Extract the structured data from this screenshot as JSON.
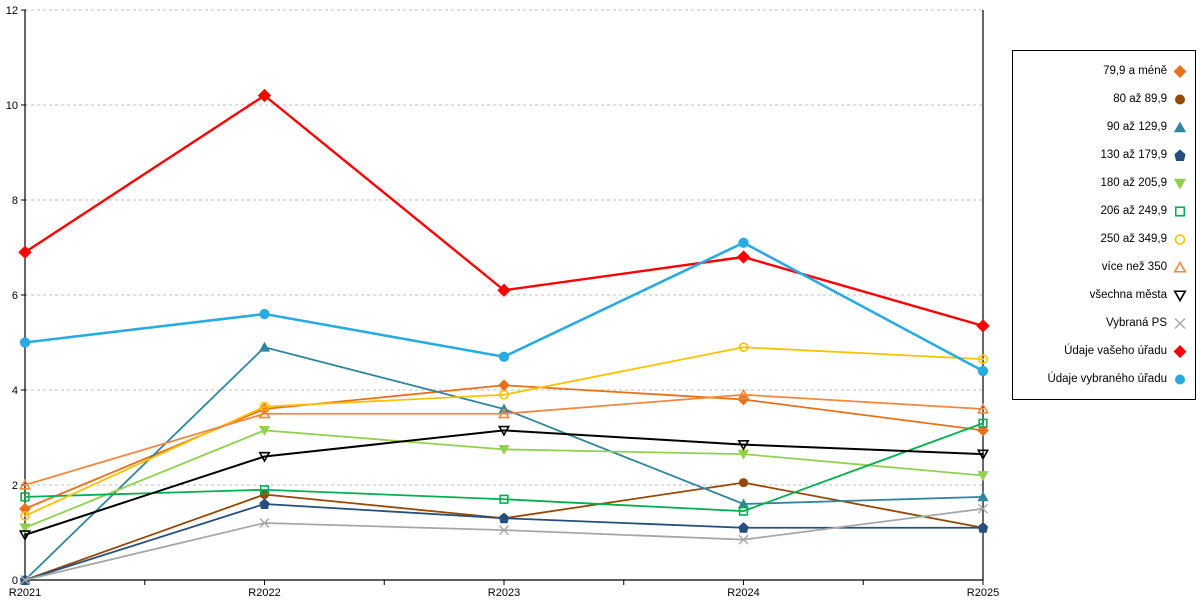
{
  "chart_data": {
    "type": "line",
    "title": "",
    "xlabel": "",
    "ylabel": "",
    "categories": [
      "R2021",
      "R2022",
      "R2023",
      "R2024",
      "R2025"
    ],
    "ylim": [
      0,
      12
    ],
    "yticks": [
      0,
      2,
      4,
      6,
      8,
      10,
      12
    ],
    "grid": "horizontal-dashed",
    "legend_position": "right-box",
    "series": [
      {
        "name": "79,9 a méně",
        "marker": "diamond",
        "filled": true,
        "color": "#E8701A",
        "width": 1.8,
        "values": [
          1.5,
          3.6,
          4.1,
          3.8,
          3.15
        ]
      },
      {
        "name": "80 až 89,9",
        "marker": "circle",
        "filled": true,
        "color": "#964809",
        "width": 1.8,
        "values": [
          0,
          1.8,
          1.3,
          2.05,
          1.1
        ]
      },
      {
        "name": "90 až 129,9",
        "marker": "triangle-up",
        "filled": true,
        "color": "#31859C",
        "width": 1.8,
        "values": [
          0,
          4.9,
          3.6,
          1.6,
          1.75
        ]
      },
      {
        "name": "130 až 179,9",
        "marker": "pentagon",
        "filled": true,
        "color": "#264F7D",
        "width": 1.8,
        "values": [
          0,
          1.6,
          1.3,
          1.1,
          1.1
        ]
      },
      {
        "name": "180 až 205,9",
        "marker": "triangle-down",
        "filled": true,
        "color": "#92D050",
        "width": 1.8,
        "values": [
          1.1,
          3.15,
          2.75,
          2.65,
          2.2
        ]
      },
      {
        "name": "206 až 249,9",
        "marker": "square",
        "filled": false,
        "color": "#00B050",
        "width": 1.8,
        "values": [
          1.75,
          1.9,
          1.7,
          1.45,
          3.3
        ]
      },
      {
        "name": "250 až 349,9",
        "marker": "circle",
        "filled": false,
        "color": "#FFC000",
        "width": 1.8,
        "values": [
          1.35,
          3.65,
          3.9,
          4.9,
          4.65
        ]
      },
      {
        "name": "více než 350",
        "marker": "triangle-up",
        "filled": false,
        "color": "#F0883E",
        "width": 1.8,
        "values": [
          2.0,
          3.5,
          3.5,
          3.9,
          3.6
        ]
      },
      {
        "name": "všechna města",
        "marker": "triangle-down",
        "filled": false,
        "color": "#000000",
        "width": 2.0,
        "values": [
          0.95,
          2.6,
          3.15,
          2.85,
          2.65
        ]
      },
      {
        "name": "Vybraná PS",
        "marker": "x",
        "filled": false,
        "color": "#A6A6A6",
        "width": 1.8,
        "values": [
          0,
          1.2,
          1.05,
          0.85,
          1.5
        ]
      },
      {
        "name": "Údaje vašeho úřadu",
        "marker": "diamond",
        "filled": true,
        "color": "#FF0000",
        "width": 2.4,
        "values": [
          6.9,
          10.2,
          6.1,
          6.8,
          5.35
        ]
      },
      {
        "name": "Údaje vybraného úřadu",
        "marker": "circle",
        "filled": true,
        "color": "#29ABE2",
        "width": 2.6,
        "values": [
          5.0,
          5.6,
          4.7,
          7.1,
          4.4
        ]
      }
    ]
  }
}
